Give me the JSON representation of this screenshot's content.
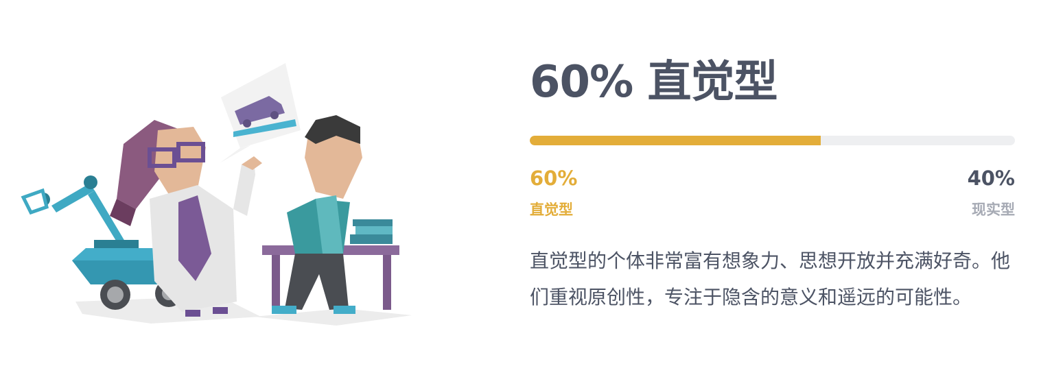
{
  "heading": {
    "percent": "60%",
    "trait": "直觉型"
  },
  "progress": {
    "fraction": 0.6,
    "fill_color": "#e3ad39",
    "track_color": "#eeeff1"
  },
  "traits": {
    "left": {
      "percent": "60%",
      "name": "直觉型",
      "color": "#e3ad39"
    },
    "right": {
      "percent": "40%",
      "name": "现实型"
    }
  },
  "description": "直觉型的个体非常富有想象力、思想开放并充满好奇。他们重视原创性，专注于隐含的意义和遥远的可能性。",
  "illustration": {
    "icons": [
      "scientist-woman",
      "thinking-man",
      "robot-arm-rover",
      "speech-bubble-car",
      "desk-with-books"
    ]
  }
}
